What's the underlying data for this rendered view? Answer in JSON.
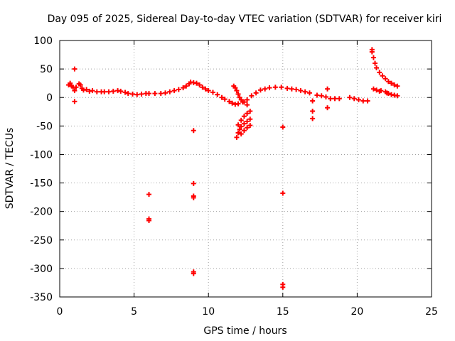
{
  "colors": {
    "series": "#ff0000",
    "grid": "#a0a0a0",
    "axis": "#000000",
    "background": "#ffffff"
  },
  "chart_data": {
    "type": "scatter",
    "title": "Day 095 of 2025, Sidereal Day-to-day VTEC variation (SDTVAR) for receiver kiri",
    "xlabel": "GPS time / hours",
    "ylabel": "SDTVAR / TECUs",
    "xlim": [
      0,
      25
    ],
    "ylim": [
      -350,
      100
    ],
    "xticks": [
      0,
      5,
      10,
      15,
      20,
      25
    ],
    "yticks": [
      100,
      50,
      0,
      -50,
      -100,
      -150,
      -200,
      -250,
      -300,
      -350
    ],
    "grid": true,
    "marker": "plus",
    "series": [
      {
        "name": "SDTVAR",
        "color": "#ff0000",
        "points": [
          [
            0.6,
            22
          ],
          [
            0.7,
            25
          ],
          [
            0.8,
            20
          ],
          [
            0.9,
            18
          ],
          [
            1.0,
            50
          ],
          [
            1.0,
            12
          ],
          [
            1.0,
            -7
          ],
          [
            1.1,
            18
          ],
          [
            1.3,
            24
          ],
          [
            1.4,
            22
          ],
          [
            1.5,
            16
          ],
          [
            1.6,
            13
          ],
          [
            1.8,
            14
          ],
          [
            2.0,
            11
          ],
          [
            2.2,
            12
          ],
          [
            2.5,
            10
          ],
          [
            2.8,
            10
          ],
          [
            3.0,
            10
          ],
          [
            3.3,
            10
          ],
          [
            3.6,
            11
          ],
          [
            3.9,
            12
          ],
          [
            4.1,
            11
          ],
          [
            4.4,
            9
          ],
          [
            4.6,
            7
          ],
          [
            4.9,
            6
          ],
          [
            5.2,
            5
          ],
          [
            5.5,
            6
          ],
          [
            5.8,
            7
          ],
          [
            6.0,
            7
          ],
          [
            6.0,
            -170
          ],
          [
            6.0,
            -213
          ],
          [
            6.0,
            -216
          ],
          [
            6.4,
            7
          ],
          [
            6.8,
            7
          ],
          [
            7.1,
            8
          ],
          [
            7.4,
            10
          ],
          [
            7.7,
            12
          ],
          [
            8.0,
            14
          ],
          [
            8.3,
            17
          ],
          [
            8.5,
            20
          ],
          [
            8.7,
            24
          ],
          [
            8.8,
            27
          ],
          [
            9.0,
            26
          ],
          [
            9.0,
            -58
          ],
          [
            9.0,
            -151
          ],
          [
            9.0,
            -173
          ],
          [
            9.0,
            -176
          ],
          [
            9.0,
            -306
          ],
          [
            9.0,
            -309
          ],
          [
            9.2,
            25
          ],
          [
            9.4,
            22
          ],
          [
            9.6,
            18
          ],
          [
            9.8,
            15
          ],
          [
            10.0,
            12
          ],
          [
            10.3,
            9
          ],
          [
            10.6,
            5
          ],
          [
            10.9,
            0
          ],
          [
            11.1,
            -3
          ],
          [
            11.4,
            -7
          ],
          [
            11.6,
            -10
          ],
          [
            11.8,
            -12
          ],
          [
            12.0,
            -11
          ],
          [
            12.3,
            -8
          ],
          [
            12.6,
            -4
          ],
          [
            12.9,
            3
          ],
          [
            13.2,
            8
          ],
          [
            13.5,
            13
          ],
          [
            13.8,
            15
          ],
          [
            14.1,
            17
          ],
          [
            14.5,
            18
          ],
          [
            14.9,
            18
          ],
          [
            15.0,
            -52
          ],
          [
            15.0,
            -168
          ],
          [
            15.0,
            -328
          ],
          [
            15.0,
            -333
          ],
          [
            15.3,
            16
          ],
          [
            15.6,
            15
          ],
          [
            15.9,
            14
          ],
          [
            16.2,
            12
          ],
          [
            16.5,
            10
          ],
          [
            16.8,
            8
          ],
          [
            17.0,
            -6
          ],
          [
            17.0,
            -24
          ],
          [
            17.0,
            -37
          ],
          [
            17.3,
            4
          ],
          [
            17.6,
            3
          ],
          [
            17.9,
            1
          ],
          [
            18.0,
            15
          ],
          [
            18.0,
            -18
          ],
          [
            18.2,
            -2
          ],
          [
            18.5,
            -2
          ],
          [
            18.8,
            -2
          ],
          [
            19.5,
            0
          ],
          [
            19.8,
            -2
          ],
          [
            20.1,
            -4
          ],
          [
            20.4,
            -6
          ],
          [
            20.7,
            -6
          ],
          [
            21.0,
            84
          ],
          [
            21.0,
            80
          ],
          [
            21.1,
            70
          ],
          [
            21.2,
            60
          ],
          [
            21.3,
            52
          ],
          [
            21.5,
            44
          ],
          [
            21.7,
            38
          ],
          [
            21.9,
            33
          ],
          [
            22.1,
            28
          ],
          [
            22.3,
            25
          ],
          [
            22.5,
            22
          ],
          [
            22.7,
            20
          ],
          [
            21.1,
            15
          ],
          [
            21.3,
            13
          ],
          [
            21.6,
            12
          ],
          [
            21.9,
            10
          ],
          [
            22.1,
            7
          ],
          [
            22.3,
            5
          ],
          [
            22.5,
            4
          ],
          [
            22.7,
            3
          ],
          [
            21.5,
            11
          ],
          [
            22.0,
            8
          ],
          [
            11.7,
            20
          ],
          [
            11.8,
            17
          ],
          [
            11.9,
            12
          ],
          [
            12.0,
            6
          ],
          [
            12.1,
            0
          ],
          [
            12.2,
            -4
          ],
          [
            12.4,
            -8
          ],
          [
            12.6,
            -13
          ],
          [
            11.9,
            -70
          ],
          [
            12.0,
            -62
          ],
          [
            12.1,
            -56
          ],
          [
            12.2,
            -51
          ],
          [
            12.4,
            -46
          ],
          [
            12.6,
            -42
          ],
          [
            12.8,
            -38
          ],
          [
            12.0,
            -48
          ],
          [
            12.2,
            -40
          ],
          [
            12.4,
            -33
          ],
          [
            12.6,
            -28
          ],
          [
            12.8,
            -24
          ],
          [
            12.2,
            -64
          ],
          [
            12.4,
            -58
          ],
          [
            12.6,
            -53
          ],
          [
            12.8,
            -49
          ]
        ]
      }
    ]
  }
}
